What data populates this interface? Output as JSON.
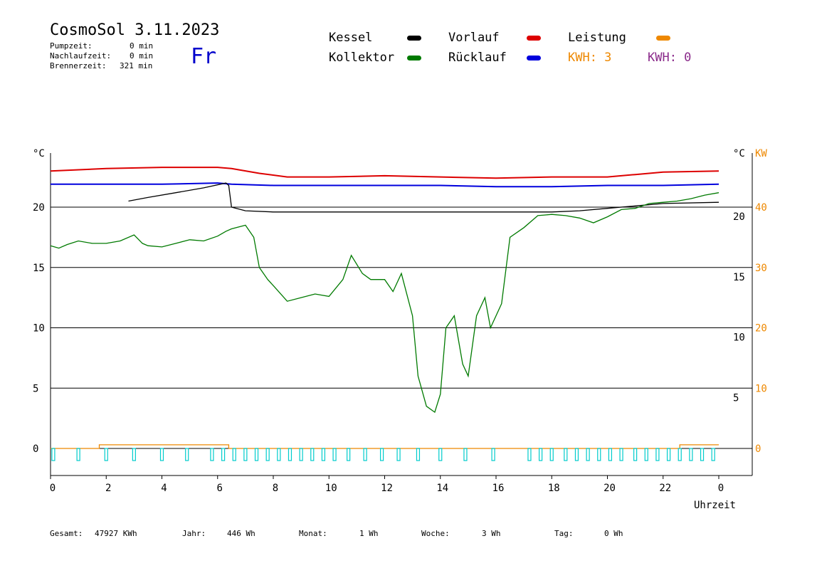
{
  "header": {
    "title": "CosmoSol 3.11.2023",
    "day": "Fr",
    "stats": [
      {
        "label": "Pumpzeit:",
        "value": "0 min"
      },
      {
        "label": "Nachlaufzeit:",
        "value": "0 min"
      },
      {
        "label": "Brennerzeit:",
        "value": "321 min"
      }
    ]
  },
  "legend": {
    "kessel": "Kessel",
    "kollektor": "Kollektor",
    "vorlauf": "Vorlauf",
    "ruecklauf": "Rücklauf",
    "leistung": "Leistung",
    "kwh_orange": "KWH: 3",
    "kwh_purple": "KWH: 0"
  },
  "footer": {
    "gesamt_label": "Gesamt:",
    "gesamt_value": "47927 KWh",
    "jahr_label": "Jahr:",
    "jahr_value": "446 Wh",
    "monat_label": "Monat:",
    "monat_value": "1 Wh",
    "woche_label": "Woche:",
    "woche_value": "3 Wh",
    "tag_label": "Tag:",
    "tag_value": "0 Wh"
  },
  "colors": {
    "kessel": "#000000",
    "kollektor": "#007a00",
    "vorlauf": "#dd0000",
    "ruecklauf": "#0000dd",
    "leistung": "#ee8800",
    "pump": "#00cccc",
    "purple": "#8a2a8a"
  },
  "chart_data": {
    "type": "line",
    "xlabel": "Uhrzeit",
    "x_ticks": [
      "0",
      "2",
      "4",
      "6",
      "8",
      "10",
      "12",
      "14",
      "16",
      "18",
      "20",
      "22",
      "0"
    ],
    "xlim": [
      0,
      24
    ],
    "left_axis": {
      "unit": "°C",
      "ticks": [
        0,
        5,
        10,
        15,
        20
      ],
      "ylim": [
        -2,
        25
      ]
    },
    "right_axis_temp": {
      "unit": "°C",
      "ticks": [
        5,
        10,
        15,
        20
      ]
    },
    "right_axis_power": {
      "unit": "KW",
      "ticks": [
        0,
        10,
        20,
        30,
        40
      ]
    },
    "series": [
      {
        "name": "Vorlauf",
        "color": "#dd0000",
        "x": [
          0,
          2,
          4,
          6,
          6.5,
          7.5,
          8.5,
          10,
          12,
          14,
          16,
          18,
          20,
          21,
          22,
          24
        ],
        "y": [
          23.0,
          23.2,
          23.3,
          23.3,
          23.2,
          22.8,
          22.5,
          22.5,
          22.6,
          22.5,
          22.4,
          22.5,
          22.5,
          22.7,
          22.9,
          23.0
        ]
      },
      {
        "name": "Rücklauf",
        "color": "#0000dd",
        "x": [
          0,
          2,
          4,
          6,
          6.5,
          8,
          10,
          12,
          14,
          16,
          18,
          20,
          22,
          24
        ],
        "y": [
          21.9,
          21.9,
          21.9,
          22.0,
          21.9,
          21.8,
          21.8,
          21.8,
          21.8,
          21.7,
          21.7,
          21.8,
          21.8,
          21.9
        ]
      },
      {
        "name": "Kessel",
        "color": "#000000",
        "x": [
          2.8,
          3.5,
          4.5,
          5.5,
          6.3,
          6.4,
          6.5,
          7.0,
          8.0,
          12.0,
          16.0,
          18.0,
          19.0,
          20.0,
          21.0,
          22.0,
          24.0
        ],
        "y": [
          20.5,
          20.8,
          21.2,
          21.6,
          22.0,
          21.8,
          20.0,
          19.7,
          19.6,
          19.6,
          19.6,
          19.6,
          19.7,
          19.9,
          20.1,
          20.3,
          20.4
        ]
      },
      {
        "name": "Kollektor",
        "color": "#007a00",
        "x": [
          0,
          0.3,
          0.6,
          1.0,
          1.5,
          2.0,
          2.5,
          3.0,
          3.3,
          3.5,
          4.0,
          4.5,
          5.0,
          5.5,
          6.0,
          6.3,
          6.5,
          7.0,
          7.3,
          7.5,
          7.8,
          8.0,
          8.5,
          9.0,
          9.5,
          10.0,
          10.5,
          10.8,
          11.2,
          11.5,
          12.0,
          12.3,
          12.6,
          13.0,
          13.2,
          13.5,
          13.8,
          14.0,
          14.2,
          14.5,
          14.8,
          15.0,
          15.3,
          15.6,
          15.8,
          16.0,
          16.2,
          16.5,
          17.0,
          17.5,
          18.0,
          18.5,
          19.0,
          19.5,
          20.0,
          20.5,
          21.0,
          21.5,
          22.0,
          22.5,
          23.0,
          23.5,
          24.0
        ],
        "y": [
          16.8,
          16.6,
          16.9,
          17.2,
          17.0,
          17.0,
          17.2,
          17.7,
          17.0,
          16.8,
          16.7,
          17.0,
          17.3,
          17.2,
          17.6,
          18.0,
          18.2,
          18.5,
          17.5,
          15.0,
          14.0,
          13.5,
          12.2,
          12.5,
          12.8,
          12.6,
          14.0,
          16.0,
          14.5,
          14.0,
          14.0,
          13.0,
          14.5,
          11.0,
          6.0,
          3.5,
          3.0,
          4.5,
          10.0,
          11.0,
          7.0,
          6.0,
          11.0,
          12.5,
          10.0,
          11.0,
          12.0,
          17.5,
          18.3,
          19.3,
          19.4,
          19.3,
          19.1,
          18.7,
          19.2,
          19.8,
          19.9,
          20.3,
          20.4,
          20.5,
          20.7,
          21.0,
          21.2
        ]
      },
      {
        "name": "Leistung",
        "color": "#ee8800",
        "x": [
          0,
          1.75,
          1.75,
          6.4,
          6.4,
          22.6,
          22.6,
          24.0
        ],
        "y": [
          0,
          0,
          0.3,
          0.3,
          0,
          0,
          0.3,
          0.3
        ]
      }
    ],
    "pump_pulses_h": [
      0.1,
      1.0,
      2.0,
      3.0,
      4.0,
      4.9,
      5.8,
      6.2,
      6.6,
      7.0,
      7.4,
      7.8,
      8.2,
      8.6,
      9.0,
      9.4,
      9.8,
      10.2,
      10.7,
      11.3,
      11.9,
      12.5,
      13.2,
      14.0,
      14.9,
      15.9,
      17.2,
      17.6,
      18.0,
      18.5,
      18.9,
      19.3,
      19.7,
      20.1,
      20.5,
      21.0,
      21.4,
      21.8,
      22.2,
      22.6,
      23.0,
      23.4,
      23.8
    ]
  }
}
